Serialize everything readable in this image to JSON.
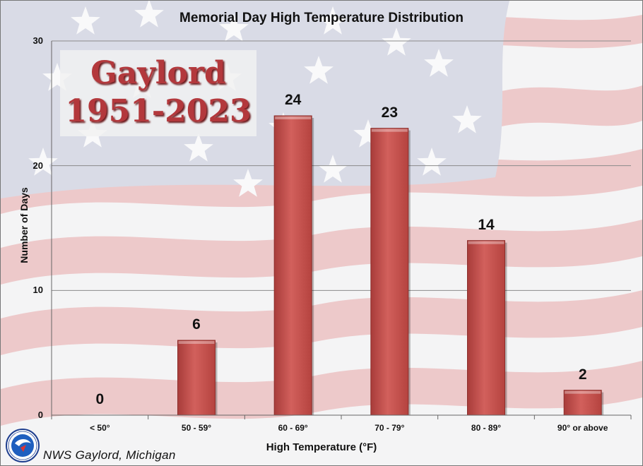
{
  "chart_data": {
    "type": "bar",
    "title": "Memorial Day High Temperature Distribution",
    "xlabel": "High Temperature (°F)",
    "ylabel": "Number of Days",
    "categories": [
      "< 50°",
      "50 - 59°",
      "60 - 69°",
      "70 - 79°",
      "80 - 89°",
      "90° or above"
    ],
    "values": [
      0,
      6,
      24,
      23,
      14,
      2
    ],
    "data_labels": [
      "0",
      "6",
      "24",
      "23",
      "14",
      "2"
    ],
    "ylim": [
      0,
      30
    ],
    "yticks": [
      "0",
      "10",
      "20",
      "30"
    ],
    "grid": true,
    "bar_color": "#c0504d"
  },
  "banner": {
    "line1": "Gaylord",
    "line2": "1951-2023"
  },
  "footer": {
    "text": "NWS Gaylord, Michigan"
  },
  "logo": {
    "icon": "nws-logo-icon"
  }
}
